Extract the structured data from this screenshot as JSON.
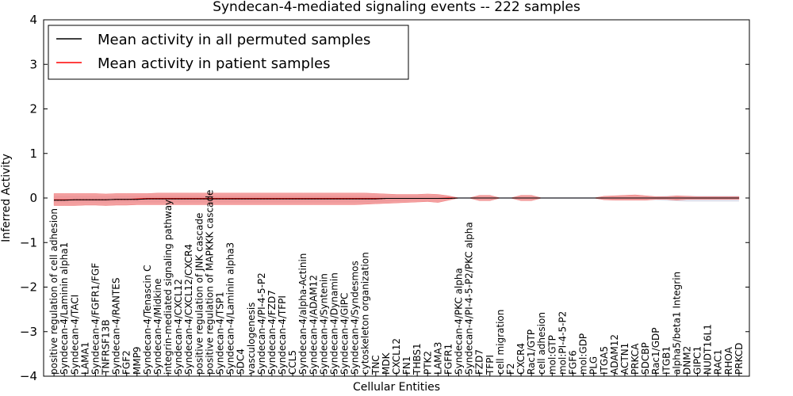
{
  "chart_data": {
    "type": "line",
    "title": "Syndecan-4-mediated signaling events -- 222 samples",
    "xlabel": "Cellular Entities",
    "ylabel": "Inferred Activity",
    "ylim": [
      -4,
      4
    ],
    "yticks": [
      4,
      3,
      2,
      1,
      0,
      -1,
      -2,
      -3,
      -4
    ],
    "ytick_labels": [
      "4",
      "3",
      "2",
      "1",
      "0",
      "−1",
      "−2",
      "−3",
      "−4"
    ],
    "legend_position": "top-left",
    "categories": [
      "positive regulation of cell adhesion",
      "Syndecan-4/Laminin alpha1",
      "Syndecan-4/TACI",
      "LAMA1",
      "Syndecan-4/FGFR1/FGF",
      "TNFRSF13B",
      "Syndecan-4/RANTES",
      "FGF2",
      "MMP9",
      "Syndecan-4/Tenascin C",
      "Syndecan-4/Midkine",
      "integrin-mediated signaling pathway",
      "Syndecan-4/CXCL12",
      "Syndecan-4/CXCL12/CXCR4",
      "positive regulation of JNK cascade",
      "positive regulation of MAPKKK cascade",
      "Syndecan-4/TSP1",
      "Syndecan-4/Laminin alpha3",
      "SDC4",
      "vasculogenesis",
      "Syndecan-4/PI-4-5-P2",
      "Syndecan-4/FZD7",
      "Syndecan-4/TFPI",
      "CCL5",
      "Syndecan-4/alpha-Actinin",
      "Syndecan-4/ADAM12",
      "Syndecan-4/Syntenin",
      "Syndecan-4/Dynamin",
      "Syndecan-4/GIPC",
      "Syndecan-4/Syndesmos",
      "cytoskeleton organization",
      "TNC",
      "MDK",
      "CXCL12",
      "FN1",
      "THBS1",
      "PTK2",
      "LAMA3",
      "FGFR1",
      "Syndecan-4/PKC alpha",
      "Syndecan-4/PI-4-5-P2/PKC alpha",
      "FZD7",
      "TFPI",
      "cell migration",
      "F2",
      "CXCR4",
      "Rac1/GTP",
      "cell adhesion",
      "mol:GTP",
      "mol:PI-4-5-P2",
      "FGF6",
      "mol:GDP",
      "PLG",
      "ITGA5",
      "ADAM12",
      "ACTN1",
      "PRKCA",
      "SDCBP",
      "Rac1/GDP",
      "ITGB1",
      "alpha5/beta1 Integrin",
      "DNM2",
      "GIPC1",
      "NUDT16L1",
      "RAC1",
      "RHOA",
      "PRKCD"
    ],
    "series": [
      {
        "name": "Mean activity in all permuted samples",
        "color": "#000000",
        "values": [
          -0.05,
          -0.05,
          -0.04,
          -0.04,
          -0.04,
          -0.04,
          -0.03,
          -0.03,
          -0.03,
          -0.02,
          -0.02,
          -0.02,
          -0.02,
          -0.02,
          -0.02,
          -0.02,
          -0.02,
          -0.02,
          -0.02,
          -0.02,
          -0.02,
          -0.02,
          -0.02,
          -0.02,
          -0.02,
          -0.02,
          -0.02,
          -0.02,
          -0.02,
          -0.02,
          -0.02,
          -0.02,
          -0.01,
          -0.01,
          -0.01,
          -0.01,
          -0.01,
          -0.01,
          -0.01,
          0.0,
          0.0,
          0.0,
          0.0,
          0.0,
          0.0,
          0.0,
          0.0,
          0.0,
          0.0,
          0.0,
          0.0,
          0.0,
          0.0,
          0.0,
          0.0,
          0.0,
          0.0,
          0.0,
          0.0,
          0.0,
          0.0,
          0.0,
          0.0,
          0.0,
          0.0,
          0.0,
          0.0
        ]
      },
      {
        "name": "Mean activity in patient samples",
        "color": "#ff0000",
        "band_color": "#f08080",
        "values": [
          -0.04,
          -0.04,
          -0.04,
          -0.04,
          -0.04,
          -0.04,
          -0.03,
          -0.03,
          -0.02,
          -0.01,
          -0.01,
          -0.01,
          -0.01,
          -0.01,
          -0.01,
          -0.01,
          -0.01,
          -0.01,
          -0.01,
          -0.01,
          -0.01,
          -0.01,
          -0.01,
          -0.01,
          -0.01,
          -0.01,
          -0.01,
          -0.01,
          -0.01,
          -0.01,
          -0.01,
          -0.01,
          -0.01,
          -0.01,
          -0.01,
          -0.01,
          -0.01,
          -0.01,
          0.0,
          0.0,
          0.0,
          0.0,
          0.0,
          0.0,
          0.0,
          0.0,
          0.0,
          0.0,
          0.0,
          0.0,
          0.0,
          0.0,
          0.0,
          0.0,
          0.0,
          0.0,
          0.0,
          0.0,
          0.0,
          0.0,
          0.0,
          0.0,
          0.0,
          0.0,
          0.0,
          0.0,
          0.0
        ],
        "band_upper": [
          0.1,
          0.1,
          0.1,
          0.1,
          0.1,
          0.09,
          0.1,
          0.1,
          0.1,
          0.1,
          0.11,
          0.11,
          0.11,
          0.11,
          0.11,
          0.11,
          0.11,
          0.11,
          0.11,
          0.11,
          0.11,
          0.11,
          0.11,
          0.11,
          0.11,
          0.11,
          0.11,
          0.11,
          0.11,
          0.11,
          0.11,
          0.1,
          0.09,
          0.08,
          0.08,
          0.08,
          0.09,
          0.08,
          0.05,
          0.0,
          0.0,
          0.06,
          0.06,
          0.0,
          0.0,
          0.06,
          0.06,
          0.0,
          0.0,
          0.0,
          0.0,
          0.0,
          0.0,
          0.04,
          0.05,
          0.06,
          0.07,
          0.05,
          0.03,
          0.03,
          0.05,
          0.04,
          0.03,
          0.03,
          0.03,
          0.03,
          0.03
        ],
        "band_lower": [
          -0.17,
          -0.17,
          -0.17,
          -0.16,
          -0.16,
          -0.17,
          -0.16,
          -0.16,
          -0.15,
          -0.15,
          -0.15,
          -0.15,
          -0.15,
          -0.15,
          -0.15,
          -0.15,
          -0.15,
          -0.15,
          -0.15,
          -0.15,
          -0.15,
          -0.15,
          -0.15,
          -0.15,
          -0.15,
          -0.15,
          -0.15,
          -0.15,
          -0.15,
          -0.15,
          -0.14,
          -0.13,
          -0.12,
          -0.11,
          -0.1,
          -0.09,
          -0.08,
          -0.1,
          -0.05,
          0.0,
          0.0,
          -0.06,
          -0.06,
          0.0,
          0.0,
          -0.06,
          -0.06,
          0.0,
          0.0,
          0.0,
          0.0,
          0.0,
          0.0,
          -0.04,
          -0.05,
          -0.05,
          -0.05,
          -0.05,
          -0.03,
          -0.03,
          -0.05,
          -0.03,
          -0.03,
          -0.03,
          -0.03,
          -0.03,
          -0.03
        ]
      }
    ],
    "permuted_band_upper": [
      0.05,
      0.05,
      0.05,
      0.05,
      0.05,
      0.05,
      0.05,
      0.05,
      0.05,
      0.05,
      0.05,
      0.05,
      0.05,
      0.05,
      0.05,
      0.05,
      0.05,
      0.05,
      0.05,
      0.05,
      0.05,
      0.05,
      0.05,
      0.05,
      0.05,
      0.05,
      0.05,
      0.05,
      0.05,
      0.05,
      0.05,
      0.05,
      0.05,
      0.05,
      0.05,
      0.05,
      0.05,
      0.05,
      0.03,
      0.02,
      0.02,
      0.02,
      0.02,
      0.02,
      0.02,
      0.02,
      0.02,
      0.02,
      0.02,
      0.02,
      0.02,
      0.02,
      0.02,
      0.02,
      0.02,
      0.02,
      0.02,
      0.03,
      0.04,
      0.05,
      0.05,
      0.05,
      0.05,
      0.05,
      0.05,
      0.05,
      0.05
    ],
    "permuted_band_lower": [
      -0.1,
      -0.1,
      -0.1,
      -0.1,
      -0.1,
      -0.1,
      -0.1,
      -0.1,
      -0.1,
      -0.1,
      -0.1,
      -0.1,
      -0.1,
      -0.1,
      -0.1,
      -0.1,
      -0.1,
      -0.1,
      -0.1,
      -0.1,
      -0.1,
      -0.1,
      -0.1,
      -0.1,
      -0.1,
      -0.1,
      -0.1,
      -0.1,
      -0.1,
      -0.1,
      -0.1,
      -0.1,
      -0.08,
      -0.07,
      -0.06,
      -0.05,
      -0.05,
      -0.05,
      -0.03,
      -0.02,
      -0.02,
      -0.02,
      -0.02,
      -0.02,
      -0.02,
      -0.02,
      -0.02,
      -0.02,
      -0.02,
      -0.02,
      -0.02,
      -0.02,
      -0.02,
      -0.02,
      -0.03,
      -0.03,
      -0.03,
      -0.04,
      -0.05,
      -0.06,
      -0.07,
      -0.08,
      -0.08,
      -0.08,
      -0.08,
      -0.08,
      -0.08
    ],
    "permuted_band_color": "#c8c8dc"
  }
}
